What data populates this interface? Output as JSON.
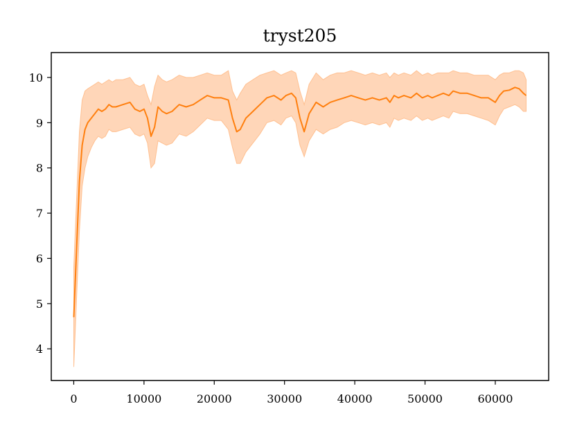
{
  "chart_data": {
    "type": "line",
    "title": "tryst205",
    "xlabel": "",
    "ylabel": "",
    "xlim": [
      -3200,
      67600
    ],
    "ylim": [
      3.3,
      10.55
    ],
    "xticks": [
      0,
      10000,
      20000,
      30000,
      40000,
      50000,
      60000
    ],
    "xtick_labels": [
      "0",
      "10000",
      "20000",
      "30000",
      "40000",
      "50000",
      "60000"
    ],
    "yticks": [
      4,
      5,
      6,
      7,
      8,
      9,
      10
    ],
    "ytick_labels": [
      "4",
      "5",
      "6",
      "7",
      "8",
      "9",
      "10"
    ],
    "grid": false,
    "legend": "none",
    "series": [
      {
        "color": "#ff7f0e",
        "band_color": "#ffbb88",
        "x": [
          0,
          400,
          800,
          1200,
          1600,
          2000,
          2500,
          3000,
          3500,
          4000,
          4500,
          5000,
          5500,
          6000,
          7000,
          8000,
          8700,
          9400,
          10000,
          10500,
          11000,
          11500,
          12000,
          12600,
          13200,
          14000,
          15000,
          16000,
          17000,
          18000,
          19000,
          20000,
          21000,
          22000,
          22600,
          23200,
          23700,
          24500,
          25500,
          26500,
          27500,
          28500,
          29500,
          30200,
          31000,
          31600,
          32200,
          32800,
          33500,
          34500,
          35500,
          36500,
          37500,
          38500,
          39500,
          40500,
          41500,
          42500,
          43500,
          44500,
          45000,
          45600,
          46200,
          47000,
          48000,
          48800,
          49600,
          50400,
          51000,
          51800,
          52600,
          53400,
          54000,
          55000,
          56000,
          57000,
          58000,
          59000,
          60000,
          60600,
          61200,
          62000,
          62800,
          63400,
          64000,
          64400
        ],
        "mean": [
          4.7,
          6.2,
          7.7,
          8.5,
          8.85,
          9.0,
          9.1,
          9.2,
          9.3,
          9.25,
          9.3,
          9.4,
          9.35,
          9.35,
          9.4,
          9.45,
          9.3,
          9.25,
          9.3,
          9.1,
          8.7,
          8.9,
          9.35,
          9.25,
          9.2,
          9.25,
          9.4,
          9.35,
          9.4,
          9.5,
          9.6,
          9.55,
          9.55,
          9.5,
          9.1,
          8.8,
          8.85,
          9.1,
          9.25,
          9.4,
          9.55,
          9.6,
          9.5,
          9.6,
          9.65,
          9.55,
          9.1,
          8.8,
          9.2,
          9.45,
          9.35,
          9.45,
          9.5,
          9.55,
          9.6,
          9.55,
          9.5,
          9.55,
          9.5,
          9.55,
          9.45,
          9.6,
          9.55,
          9.6,
          9.55,
          9.65,
          9.55,
          9.6,
          9.55,
          9.6,
          9.65,
          9.6,
          9.7,
          9.65,
          9.65,
          9.6,
          9.55,
          9.55,
          9.45,
          9.6,
          9.7,
          9.72,
          9.78,
          9.75,
          9.65,
          9.6
        ],
        "upper": [
          5.8,
          7.3,
          8.8,
          9.5,
          9.7,
          9.75,
          9.8,
          9.85,
          9.9,
          9.85,
          9.9,
          9.95,
          9.9,
          9.95,
          9.95,
          10.0,
          9.85,
          9.8,
          9.85,
          9.6,
          9.4,
          9.8,
          10.05,
          9.95,
          9.9,
          9.95,
          10.05,
          10.0,
          10.0,
          10.05,
          10.1,
          10.05,
          10.05,
          10.15,
          9.7,
          9.5,
          9.65,
          9.85,
          9.95,
          10.05,
          10.1,
          10.15,
          10.05,
          10.1,
          10.15,
          10.1,
          9.7,
          9.4,
          9.85,
          10.1,
          9.95,
          10.05,
          10.1,
          10.1,
          10.15,
          10.1,
          10.05,
          10.1,
          10.05,
          10.1,
          10.0,
          10.1,
          10.05,
          10.1,
          10.05,
          10.15,
          10.05,
          10.1,
          10.05,
          10.1,
          10.1,
          10.1,
          10.15,
          10.1,
          10.1,
          10.05,
          10.05,
          10.05,
          9.95,
          10.05,
          10.1,
          10.1,
          10.15,
          10.15,
          10.1,
          9.95
        ],
        "lower": [
          3.6,
          5.1,
          6.6,
          7.6,
          8.0,
          8.25,
          8.45,
          8.6,
          8.7,
          8.65,
          8.7,
          8.85,
          8.8,
          8.8,
          8.85,
          8.9,
          8.75,
          8.7,
          8.75,
          8.55,
          8.0,
          8.1,
          8.6,
          8.55,
          8.5,
          8.55,
          8.75,
          8.7,
          8.8,
          8.95,
          9.1,
          9.05,
          9.05,
          8.85,
          8.45,
          8.1,
          8.1,
          8.35,
          8.55,
          8.75,
          9.0,
          9.05,
          8.95,
          9.1,
          9.15,
          9.0,
          8.5,
          8.25,
          8.6,
          8.85,
          8.75,
          8.85,
          8.9,
          9.0,
          9.05,
          9.0,
          8.95,
          9.0,
          8.95,
          9.0,
          8.9,
          9.1,
          9.05,
          9.1,
          9.05,
          9.15,
          9.05,
          9.1,
          9.05,
          9.1,
          9.15,
          9.1,
          9.25,
          9.2,
          9.2,
          9.15,
          9.1,
          9.05,
          8.95,
          9.15,
          9.3,
          9.35,
          9.4,
          9.35,
          9.25,
          9.25
        ]
      }
    ]
  }
}
